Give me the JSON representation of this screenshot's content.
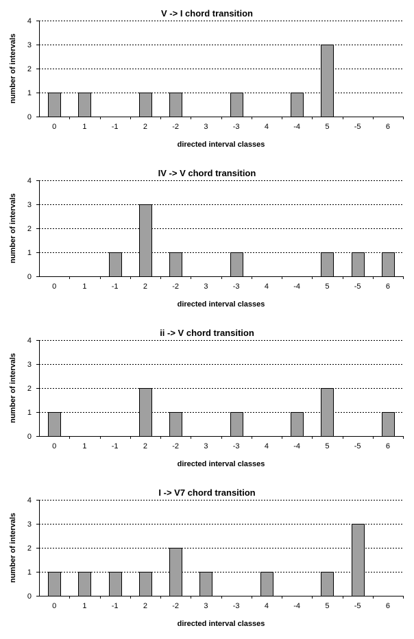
{
  "chart_data": [
    {
      "type": "bar",
      "title": "V -> I chord transition",
      "xlabel": "directed interval classes",
      "ylabel": "number of intervals",
      "categories": [
        "0",
        "1",
        "-1",
        "2",
        "-2",
        "3",
        "-3",
        "4",
        "-4",
        "5",
        "-5",
        "6"
      ],
      "values": [
        1,
        1,
        0,
        1,
        1,
        0,
        1,
        0,
        1,
        3,
        0,
        0
      ],
      "ylim": [
        0,
        4
      ],
      "yticks": [
        "0",
        "1",
        "2",
        "3",
        "4"
      ],
      "grid": true,
      "bar_color": "#a0a0a0"
    },
    {
      "type": "bar",
      "title": "IV -> V chord transition",
      "xlabel": "directed interval classes",
      "ylabel": "number of intervals",
      "categories": [
        "0",
        "1",
        "-1",
        "2",
        "-2",
        "3",
        "-3",
        "4",
        "-4",
        "5",
        "-5",
        "6"
      ],
      "values": [
        0,
        0,
        1,
        3,
        1,
        0,
        1,
        0,
        0,
        1,
        1,
        1
      ],
      "ylim": [
        0,
        4
      ],
      "yticks": [
        "0",
        "1",
        "2",
        "3",
        "4"
      ],
      "grid": true,
      "bar_color": "#a0a0a0"
    },
    {
      "type": "bar",
      "title": "ii -> V chord transition",
      "xlabel": "directed interval classes",
      "ylabel": "number of intervals",
      "categories": [
        "0",
        "1",
        "-1",
        "2",
        "-2",
        "3",
        "-3",
        "4",
        "-4",
        "5",
        "-5",
        "6"
      ],
      "values": [
        1,
        0,
        0,
        2,
        1,
        0,
        1,
        0,
        1,
        2,
        0,
        1
      ],
      "ylim": [
        0,
        4
      ],
      "yticks": [
        "0",
        "1",
        "2",
        "3",
        "4"
      ],
      "grid": true,
      "bar_color": "#a0a0a0"
    },
    {
      "type": "bar",
      "title": "I -> V7 chord transition",
      "xlabel": "directed interval classes",
      "ylabel": "number of intervals",
      "categories": [
        "0",
        "1",
        "-1",
        "2",
        "-2",
        "3",
        "-3",
        "4",
        "-4",
        "5",
        "-5",
        "6"
      ],
      "values": [
        1,
        1,
        1,
        1,
        2,
        1,
        0,
        1,
        0,
        1,
        3,
        0
      ],
      "ylim": [
        0,
        4
      ],
      "yticks": [
        "0",
        "1",
        "2",
        "3",
        "4"
      ],
      "grid": true,
      "bar_color": "#a0a0a0"
    }
  ]
}
